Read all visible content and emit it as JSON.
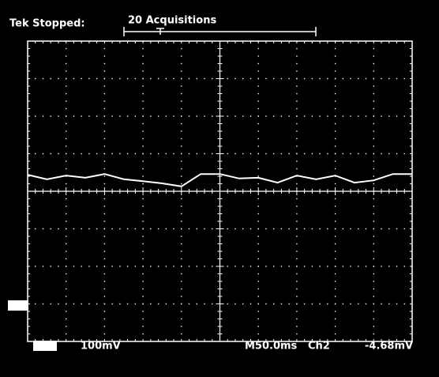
{
  "status": {
    "label": "Tek Stopped:",
    "acquisitions": "20 Acquisitions"
  },
  "readout": {
    "channel_scale": "100mV",
    "timebase": "M50.0ms",
    "trigger_source": "Ch2",
    "trigger_level": "-4.68mV"
  },
  "trace": {
    "y_div": [
      0.44,
      0.32,
      0.42,
      0.36,
      0.46,
      0.32,
      0.27,
      0.21,
      0.13,
      0.46,
      0.46,
      0.34,
      0.36,
      0.23,
      0.42,
      0.32,
      0.42,
      0.23,
      0.29,
      0.46,
      0.46
    ]
  }
}
